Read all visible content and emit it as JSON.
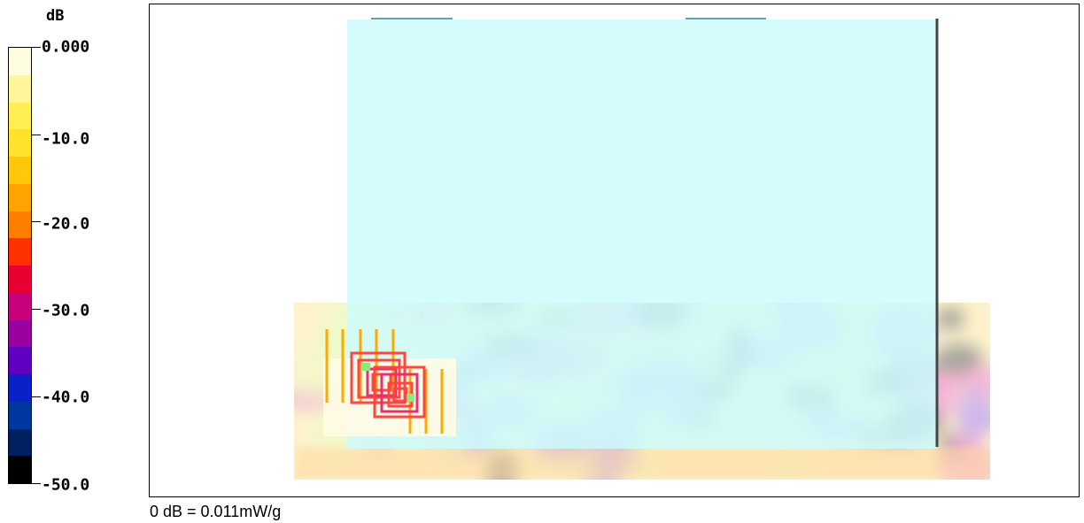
{
  "legend": {
    "unit": "dB",
    "ticks": [
      {
        "label": "0.000",
        "value": 0
      },
      {
        "label": "-10.0",
        "value": -10
      },
      {
        "label": "-20.0",
        "value": -20
      },
      {
        "label": "-30.0",
        "value": -30
      },
      {
        "label": "-40.0",
        "value": -40
      },
      {
        "label": "-50.0",
        "value": -50
      }
    ],
    "colors": [
      "#fffde0",
      "#fff59a",
      "#ffef55",
      "#ffe22e",
      "#ffc80a",
      "#ffa400",
      "#ff7e00",
      "#ff3000",
      "#e80030",
      "#c8007a",
      "#9800a0",
      "#6000c0",
      "#0a20c8",
      "#0036a0",
      "#002060",
      "#000000"
    ]
  },
  "reference_note": "0 dB = 0.011mW/g",
  "plot": {
    "phone_color": "#ccfcfc",
    "scan_colors": [
      "#fdf2cc",
      "#eef9c8",
      "#c8b2f0",
      "#8f8f8f",
      "#f3a8d8",
      "#ffd9a0"
    ],
    "contour_colors": [
      "#ffaa00",
      "#ff4444",
      "#e83070"
    ]
  }
}
